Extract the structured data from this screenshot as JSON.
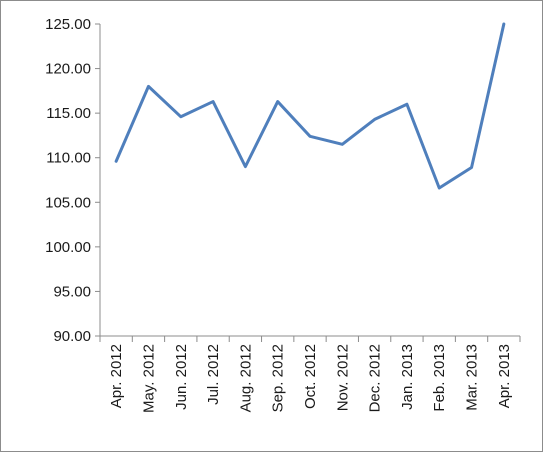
{
  "chart_data": {
    "type": "line",
    "title": "",
    "xlabel": "",
    "ylabel": "",
    "categories": [
      "Apr. 2012",
      "May. 2012",
      "Jun. 2012",
      "Jul. 2012",
      "Aug. 2012",
      "Sep. 2012",
      "Oct. 2012",
      "Nov. 2012",
      "Dec. 2012",
      "Jan. 2013",
      "Feb. 2013",
      "Mar. 2013",
      "Apr. 2013"
    ],
    "series": [
      {
        "values": [
          109.6,
          118.0,
          114.6,
          116.3,
          109.0,
          116.3,
          112.4,
          111.5,
          114.3,
          116.0,
          106.6,
          108.9,
          125.0
        ]
      }
    ],
    "ylim": [
      90,
      125
    ],
    "yticks": [
      "90.00",
      "95.00",
      "100.00",
      "105.00",
      "110.00",
      "115.00",
      "120.00",
      "125.00"
    ],
    "grid": false,
    "legend": "none",
    "colors": {
      "line": "#4f7fbc",
      "axis": "#8c8c8c"
    }
  }
}
